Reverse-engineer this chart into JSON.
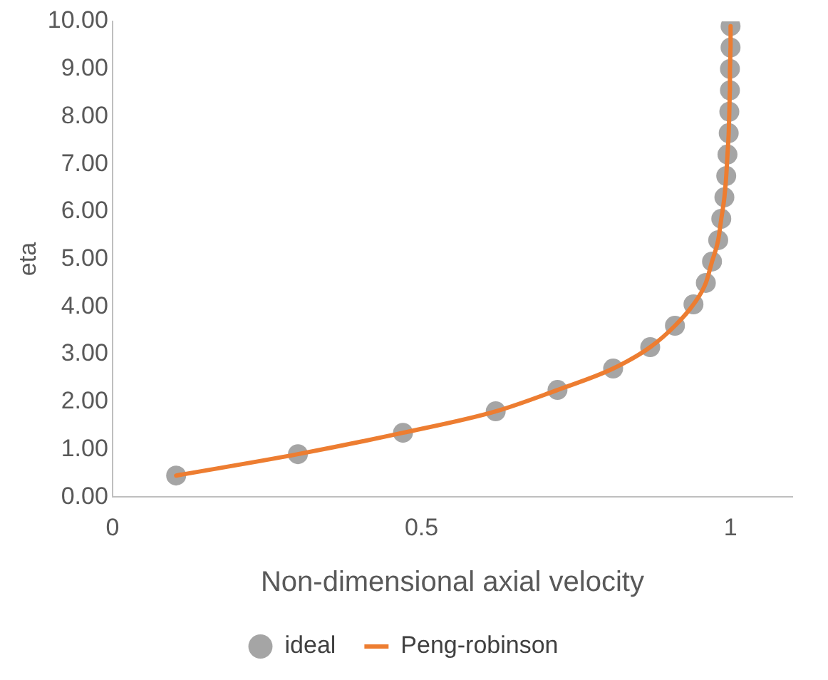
{
  "chart_data": {
    "type": "scatter",
    "xlabel": "Non-dimensional axial velocity",
    "ylabel": "eta",
    "xlim": [
      0,
      1.1
    ],
    "xticks": [
      0,
      0.5,
      1
    ],
    "ylim": [
      0,
      10
    ],
    "yticks": [
      {
        "value": 0,
        "label": "0.00"
      },
      {
        "value": 1,
        "label": "1.00"
      },
      {
        "value": 2,
        "label": "2.00"
      },
      {
        "value": 3,
        "label": "3.00"
      },
      {
        "value": 4,
        "label": "4.00"
      },
      {
        "value": 5,
        "label": "5.00"
      },
      {
        "value": 6,
        "label": "6.00"
      },
      {
        "value": 7,
        "label": "7.00"
      },
      {
        "value": 8,
        "label": "8.00"
      },
      {
        "value": 9,
        "label": "9.00"
      },
      {
        "value": 10,
        "label": "10.00"
      }
    ],
    "grid": false,
    "legend": "bottom",
    "series": [
      {
        "name": "ideal",
        "marker": "circle",
        "color": "#a5a5a5",
        "x": [
          0.103,
          0.3,
          0.47,
          0.62,
          0.72,
          0.81,
          0.87,
          0.91,
          0.94,
          0.96,
          0.97,
          0.98,
          0.985,
          0.99,
          0.993,
          0.995,
          0.997,
          0.998,
          0.999,
          0.999,
          1.0,
          1.0
        ],
        "values": [
          0.45,
          0.9,
          1.35,
          1.8,
          2.25,
          2.7,
          3.15,
          3.6,
          4.05,
          4.5,
          4.95,
          5.4,
          5.85,
          6.3,
          6.75,
          7.2,
          7.65,
          8.1,
          8.55,
          9.0,
          9.45,
          9.9
        ]
      },
      {
        "name": "Peng-robinson",
        "type": "line",
        "marker": "none",
        "line_style": "solid",
        "color": "#ed7d31",
        "x": [
          0.103,
          0.3,
          0.47,
          0.62,
          0.72,
          0.81,
          0.87,
          0.91,
          0.94,
          0.96,
          0.97,
          0.98,
          0.985,
          0.99,
          0.993,
          0.995,
          0.997,
          0.998,
          0.999,
          0.999,
          1.0,
          1.0
        ],
        "values": [
          0.45,
          0.9,
          1.35,
          1.8,
          2.25,
          2.7,
          3.15,
          3.6,
          4.05,
          4.5,
          4.95,
          5.4,
          5.85,
          6.3,
          6.75,
          7.2,
          7.65,
          8.1,
          8.55,
          9.0,
          9.45,
          9.9
        ]
      }
    ]
  }
}
